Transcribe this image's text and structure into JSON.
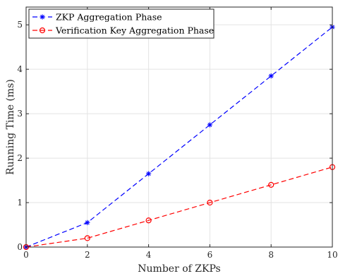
{
  "chart_data": {
    "type": "line",
    "title": "",
    "xlabel": "Number of ZKPs",
    "ylabel": "Running Time (ms)",
    "xlim": [
      0,
      10
    ],
    "ylim": [
      0,
      5.4
    ],
    "xticks": [
      0,
      2,
      4,
      6,
      8,
      10
    ],
    "yticks": [
      0,
      1,
      2,
      3,
      4,
      5
    ],
    "grid": true,
    "legend_position": "top-left",
    "x": [
      0,
      2,
      4,
      6,
      8,
      10
    ],
    "series": [
      {
        "name": "ZKP Aggregation Phase",
        "values": [
          0,
          0.55,
          1.65,
          2.75,
          3.85,
          4.95
        ],
        "color": "#0000ff",
        "marker": "asterisk",
        "line_style": "dashed"
      },
      {
        "name": "Verification Key Aggregation Phase",
        "values": [
          0,
          0.2,
          0.6,
          1.0,
          1.4,
          1.8
        ],
        "color": "#ff0000",
        "marker": "circle",
        "line_style": "dashed"
      }
    ]
  }
}
